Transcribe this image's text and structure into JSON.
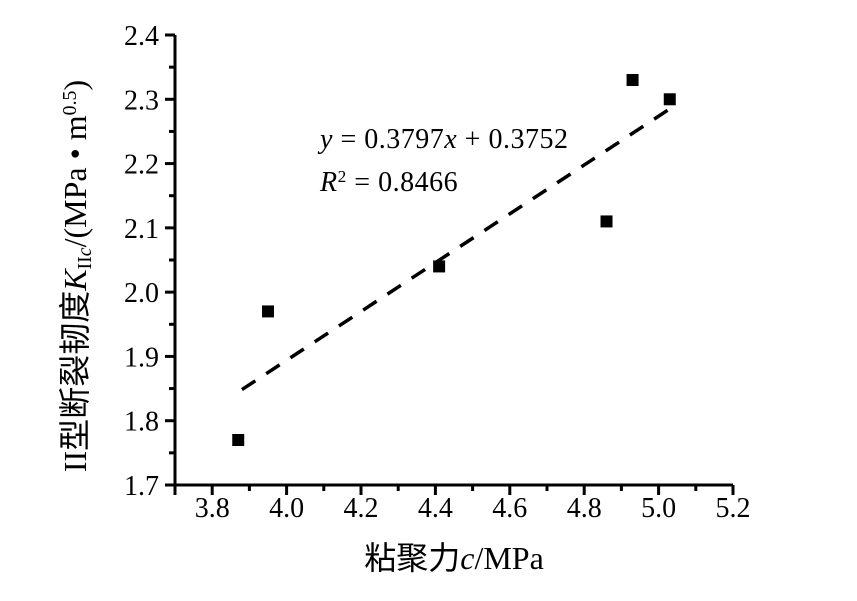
{
  "chart_data": {
    "type": "scatter",
    "title": "",
    "points": [
      {
        "x": 3.87,
        "y": 1.77
      },
      {
        "x": 3.95,
        "y": 1.97
      },
      {
        "x": 4.41,
        "y": 2.04
      },
      {
        "x": 4.86,
        "y": 2.11
      },
      {
        "x": 4.93,
        "y": 2.33
      },
      {
        "x": 5.03,
        "y": 2.3
      }
    ],
    "marker": "filled-square",
    "trendline": {
      "style": "dashed",
      "slope": 0.3797,
      "intercept": 0.3752,
      "x_start": 3.88,
      "x_end": 5.04
    },
    "annotation": {
      "equation": {
        "var1": "y",
        "mid": " = 0.3797",
        "var2": "x",
        "tail": " + 0.3752"
      },
      "r_squared": {
        "sym": "R",
        "sup": "2",
        "rest": " = 0.8466"
      }
    },
    "x_axis": {
      "label": {
        "cjk": "粘聚力",
        "var": "c",
        "unit": "/MPa"
      },
      "min": 3.7,
      "max": 5.2,
      "major_ticks": [
        3.8,
        4.0,
        4.2,
        4.4,
        4.6,
        4.8,
        5.0,
        5.2
      ],
      "major_tick_labels": [
        "3.8",
        "4.0",
        "4.2",
        "4.4",
        "4.6",
        "4.8",
        "5.0",
        "5.2"
      ],
      "minor_ticks": [
        3.9,
        4.1,
        4.3,
        4.5,
        4.7,
        4.9,
        5.1
      ]
    },
    "y_axis": {
      "label": {
        "cjk": "II型断裂韧度",
        "sym": "K",
        "sub_roman": "II",
        "sub_italic": "c",
        "unit_pre": "/(MPa",
        "dot": " • ",
        "unit_m": "m",
        "sup": "0.5",
        "close": ")"
      },
      "min": 1.7,
      "max": 2.4,
      "major_ticks": [
        1.7,
        1.8,
        1.9,
        2.0,
        2.1,
        2.2,
        2.3,
        2.4
      ],
      "major_tick_labels": [
        "1.7",
        "1.8",
        "1.9",
        "2.0",
        "2.1",
        "2.2",
        "2.3",
        "2.4"
      ],
      "minor_ticks": [
        1.75,
        1.85,
        1.95,
        2.05,
        2.15,
        2.25,
        2.35
      ]
    },
    "grid": false,
    "legend": false,
    "colors": {
      "ink": "#000000",
      "background": "#ffffff"
    }
  }
}
